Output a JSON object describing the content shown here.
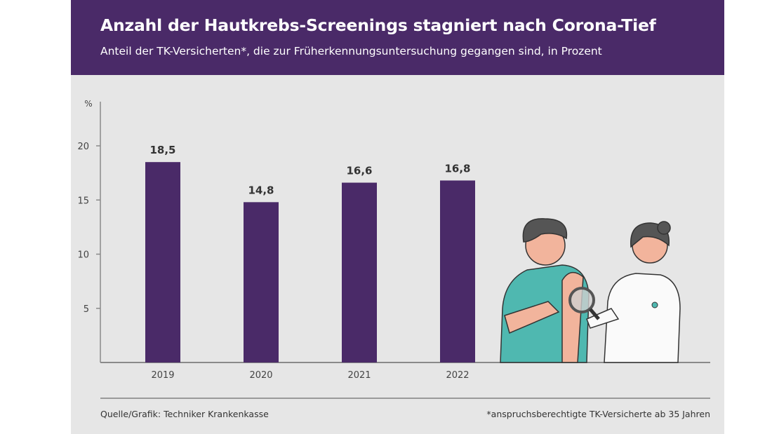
{
  "header": {
    "title": "Anzahl der Hautkrebs-Screenings stagniert nach Corona-Tief",
    "subtitle": "Anteil der TK-Versicherten*, die zur Früherkennungsuntersuchung gegangen sind, in Prozent"
  },
  "chart_data": {
    "type": "bar",
    "title": "Anzahl der Hautkrebs-Screenings stagniert nach Corona-Tief",
    "subtitle": "Anteil der TK-Versicherten*, die zur Früherkennungsuntersuchung gegangen sind, in Prozent",
    "ylabel": "%",
    "xlabel": "",
    "categories": [
      "2019",
      "2020",
      "2021",
      "2022"
    ],
    "values": [
      18.5,
      14.8,
      16.6,
      16.8
    ],
    "data_labels": [
      "18,5",
      "14,8",
      "16,6",
      "16,8"
    ],
    "yticks": [
      "5",
      "10",
      "15",
      "20"
    ],
    "ytick_values": [
      5,
      10,
      15,
      20
    ],
    "ylim": [
      0,
      24
    ],
    "grid": false,
    "bar_color": "#4a2a68"
  },
  "footer": {
    "source": "Quelle/Grafik: Techniker Krankenkasse",
    "note": "*anspruchsberechtigte TK-Versicherte ab 35 Jahren"
  },
  "illustration": {
    "icon": "doctor-examining-skin-with-magnifier"
  }
}
